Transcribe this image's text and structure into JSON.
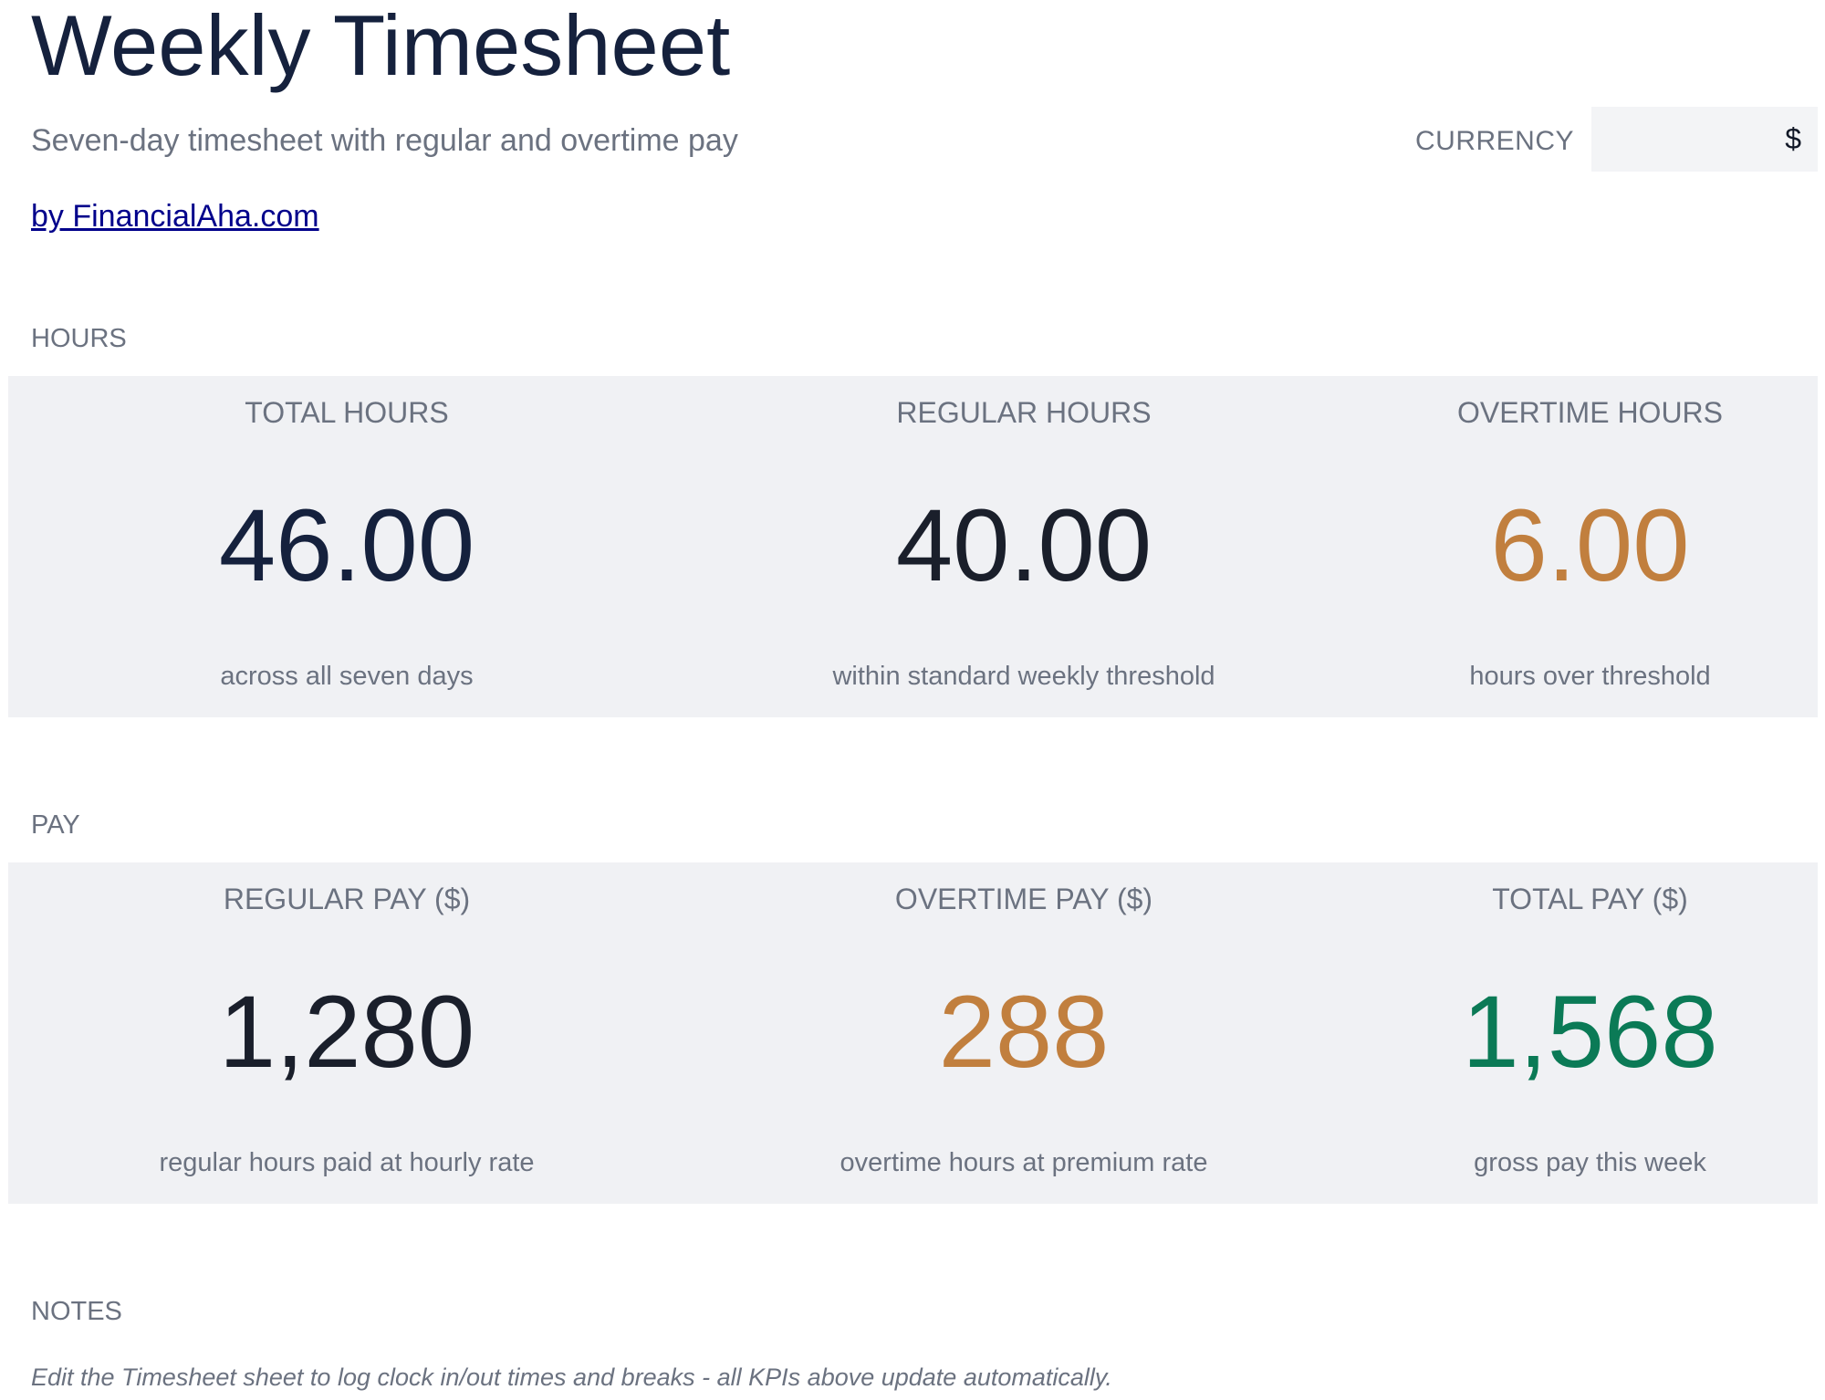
{
  "header": {
    "title": "Weekly Timesheet",
    "subtitle": "Seven-day timesheet with regular and overtime pay",
    "byline": "by FinancialAha.com"
  },
  "currency": {
    "label": "CURRENCY",
    "value": "$"
  },
  "hours": {
    "section_label": "HOURS",
    "cards": [
      {
        "label": "TOTAL HOURS",
        "value": "46.00",
        "note": "across all seven days",
        "color": "#15213d"
      },
      {
        "label": "REGULAR HOURS",
        "value": "40.00",
        "note": "within standard weekly threshold",
        "color": "#1a1f2b"
      },
      {
        "label": "OVERTIME HOURS",
        "value": "6.00",
        "note": "hours over threshold",
        "color": "#c17f3e"
      }
    ]
  },
  "pay": {
    "section_label": "PAY",
    "cards": [
      {
        "label": "REGULAR PAY ($)",
        "value": "1,280",
        "note": "regular hours paid at hourly rate",
        "color": "#1a1f2b"
      },
      {
        "label": "OVERTIME PAY ($)",
        "value": "288",
        "note": "overtime hours at premium rate",
        "color": "#c17f3e"
      },
      {
        "label": "TOTAL PAY ($)",
        "value": "1,568",
        "note": "gross pay this week",
        "color": "#0b7a56"
      }
    ]
  },
  "notes": {
    "section_label": "NOTES",
    "text": "Edit the Timesheet sheet to log clock in/out times and breaks - all KPIs above update automatically."
  }
}
